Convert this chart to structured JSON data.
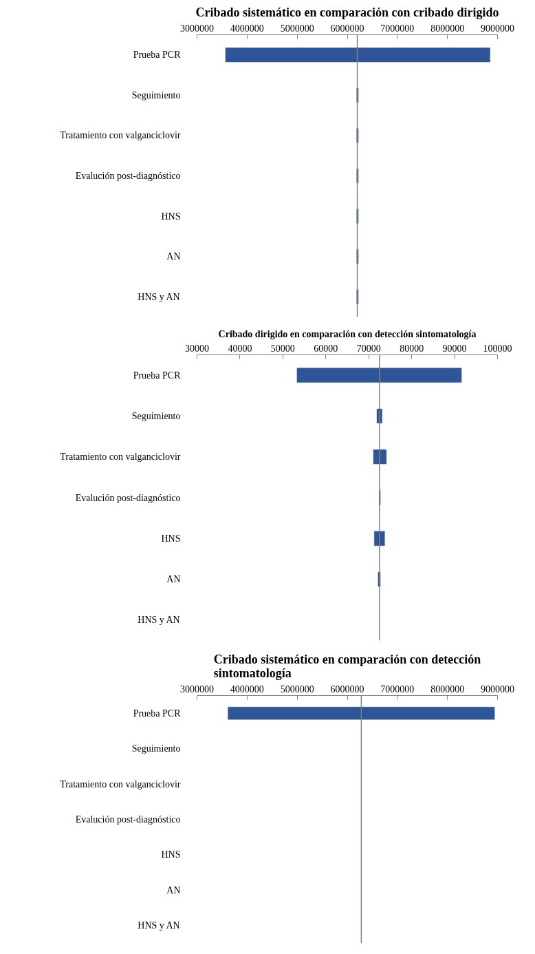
{
  "chart_data": [
    {
      "type": "bar",
      "orientation": "horizontal",
      "title": "Cribado sistemático en comparación con cribado dirigido",
      "categories": [
        "Prueba PCR",
        "Seguimiento",
        "Tratamiento con valganciclovir",
        "Evalución post-diagnóstico",
        "HNS",
        "AN",
        "HNS y AN"
      ],
      "base": [
        3570000,
        6190000,
        6190000,
        6190000,
        6190000,
        6190000,
        6190000
      ],
      "values": [
        5280000,
        30000,
        30000,
        30000,
        30000,
        30000,
        30000
      ],
      "color": "#2e5597",
      "xlim": [
        3000000,
        9000000
      ],
      "xticks": [
        3000000,
        4000000,
        5000000,
        6000000,
        7000000,
        8000000,
        9000000
      ],
      "ref_lines": [
        {
          "axis": "x",
          "value": 6200000,
          "color": "#808080"
        }
      ],
      "grid": false
    },
    {
      "type": "bar",
      "orientation": "horizontal",
      "title": "Cribado dirigido en comparación con detección sintomatología",
      "categories": [
        "Prueba PCR",
        "Seguimiento",
        "Tratamiento con valganciclovir",
        "Evalución post-diagnóstico",
        "HNS",
        "AN",
        "HNS y AN"
      ],
      "base": [
        53300,
        71900,
        71100,
        72500,
        71300,
        72200,
        null
      ],
      "values": [
        38300,
        1200,
        3000,
        200,
        2400,
        500,
        null
      ],
      "color": "#2e5597",
      "xlim": [
        30000,
        100000
      ],
      "xticks": [
        30000,
        40000,
        50000,
        60000,
        70000,
        80000,
        90000,
        100000
      ],
      "ref_lines": [
        {
          "axis": "x",
          "value": 72500,
          "color": "#808080"
        }
      ],
      "grid": false
    },
    {
      "type": "bar",
      "orientation": "horizontal",
      "title": "Cribado sistemático en comparación con detección sintomatología",
      "categories": [
        "Prueba PCR",
        "Seguimiento",
        "Tratamiento con valganciclovir",
        "Evalución post-diagnóstico",
        "HNS",
        "AN",
        "HNS y AN"
      ],
      "base": [
        3620000,
        null,
        null,
        null,
        null,
        null,
        null
      ],
      "values": [
        5320000,
        null,
        null,
        null,
        null,
        null,
        null
      ],
      "color": "#2e5597",
      "xlim": [
        3000000,
        9000000
      ],
      "xticks": [
        3000000,
        4000000,
        5000000,
        6000000,
        7000000,
        8000000,
        9000000
      ],
      "ref_lines": [
        {
          "axis": "x",
          "value": 6280000,
          "color": "#808080"
        }
      ],
      "grid": false
    }
  ]
}
